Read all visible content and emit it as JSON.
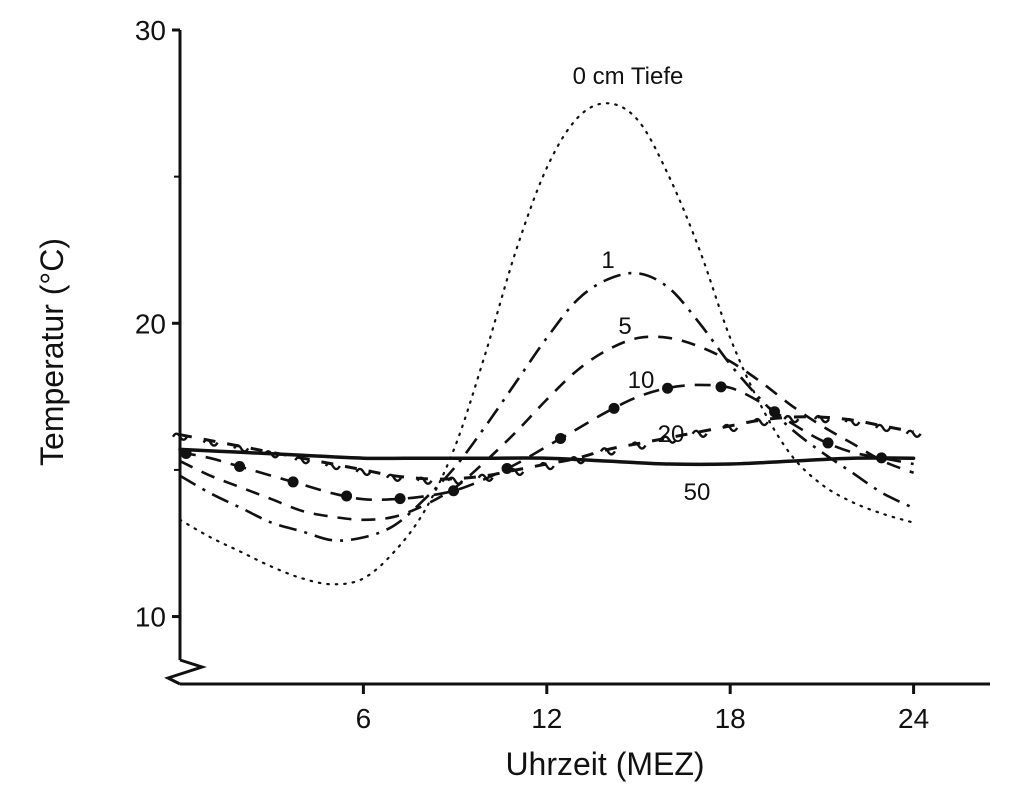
{
  "chart_data": {
    "type": "line",
    "title": "",
    "xlabel": "Uhrzeit (MEZ)",
    "ylabel": "Temperatur (°C)",
    "xlim": [
      0,
      26.5
    ],
    "ylim": [
      7.7,
      30
    ],
    "xticks": [
      6,
      12,
      18,
      24
    ],
    "yticks": [
      10,
      20,
      30
    ],
    "y_axis_break": true,
    "grid": false,
    "legend": "none",
    "series": [
      {
        "name": "0 cm Tiefe",
        "label": "0 cm Tiefe",
        "style": "dotted",
        "x": [
          0,
          1,
          2,
          3,
          4,
          5,
          6,
          7,
          8,
          9,
          10,
          11,
          12,
          13,
          14,
          15,
          16,
          17,
          18,
          19,
          20,
          21,
          22,
          23,
          24
        ],
        "y": [
          13.3,
          12.7,
          12.2,
          11.7,
          11.3,
          11.1,
          11.3,
          12.2,
          13.6,
          15.8,
          19.0,
          22.5,
          25.3,
          27.0,
          27.5,
          26.9,
          25.0,
          22.5,
          19.5,
          17.2,
          15.5,
          14.5,
          13.9,
          13.5,
          13.2
        ]
      },
      {
        "name": "1",
        "label": "1",
        "style": "dash-dot",
        "x": [
          0,
          1,
          2,
          3,
          4,
          5,
          6,
          7,
          8,
          9,
          10,
          11,
          12,
          13,
          14,
          15,
          16,
          17,
          18,
          19,
          20,
          21,
          22,
          23,
          24
        ],
        "y": [
          14.8,
          14.2,
          13.7,
          13.2,
          12.9,
          12.6,
          12.7,
          13.1,
          14.0,
          15.1,
          16.5,
          18.0,
          19.5,
          20.8,
          21.5,
          21.7,
          21.2,
          20.0,
          18.6,
          17.4,
          16.4,
          15.6,
          14.9,
          14.2,
          13.7
        ]
      },
      {
        "name": "5",
        "label": "5",
        "style": "dashed",
        "x": [
          0,
          1,
          2,
          3,
          4,
          5,
          6,
          7,
          8,
          9,
          10,
          11,
          12,
          13,
          14,
          15,
          16,
          17,
          18,
          19,
          20,
          21,
          22,
          23,
          24
        ],
        "y": [
          15.3,
          14.8,
          14.4,
          14.0,
          13.6,
          13.4,
          13.3,
          13.4,
          13.8,
          14.4,
          15.3,
          16.3,
          17.4,
          18.4,
          19.1,
          19.5,
          19.5,
          19.2,
          18.7,
          18.0,
          17.2,
          16.5,
          15.9,
          15.3,
          14.9
        ]
      },
      {
        "name": "10",
        "label": "10",
        "style": "dash-dots",
        "x": [
          0,
          1,
          2,
          3,
          4,
          5,
          6,
          7,
          8,
          9,
          10,
          11,
          12,
          13,
          14,
          15,
          16,
          17,
          18,
          19,
          20,
          21,
          22,
          23,
          24
        ],
        "y": [
          15.6,
          15.4,
          15.1,
          14.8,
          14.5,
          14.2,
          14.0,
          14.0,
          14.1,
          14.3,
          14.7,
          15.2,
          15.8,
          16.4,
          17.0,
          17.5,
          17.8,
          17.9,
          17.8,
          17.3,
          16.6,
          16.0,
          15.6,
          15.4,
          15.2
        ]
      },
      {
        "name": "20",
        "label": "20",
        "style": "tilde",
        "x": [
          0,
          1,
          2,
          3,
          4,
          5,
          6,
          7,
          8,
          9,
          10,
          11,
          12,
          13,
          14,
          15,
          16,
          17,
          18,
          19,
          20,
          21,
          22,
          23,
          24
        ],
        "y": [
          16.2,
          16.0,
          15.8,
          15.6,
          15.4,
          15.2,
          15.0,
          14.8,
          14.7,
          14.7,
          14.8,
          15.0,
          15.2,
          15.4,
          15.7,
          15.9,
          16.1,
          16.3,
          16.5,
          16.7,
          16.8,
          16.8,
          16.7,
          16.5,
          16.3
        ]
      },
      {
        "name": "50",
        "label": "50",
        "style": "solid",
        "x": [
          0,
          2,
          4,
          6,
          8,
          10,
          12,
          14,
          16,
          18,
          20,
          22,
          24
        ],
        "y": [
          15.7,
          15.6,
          15.5,
          15.4,
          15.4,
          15.4,
          15.4,
          15.3,
          15.2,
          15.2,
          15.3,
          15.4,
          15.4
        ]
      }
    ]
  }
}
